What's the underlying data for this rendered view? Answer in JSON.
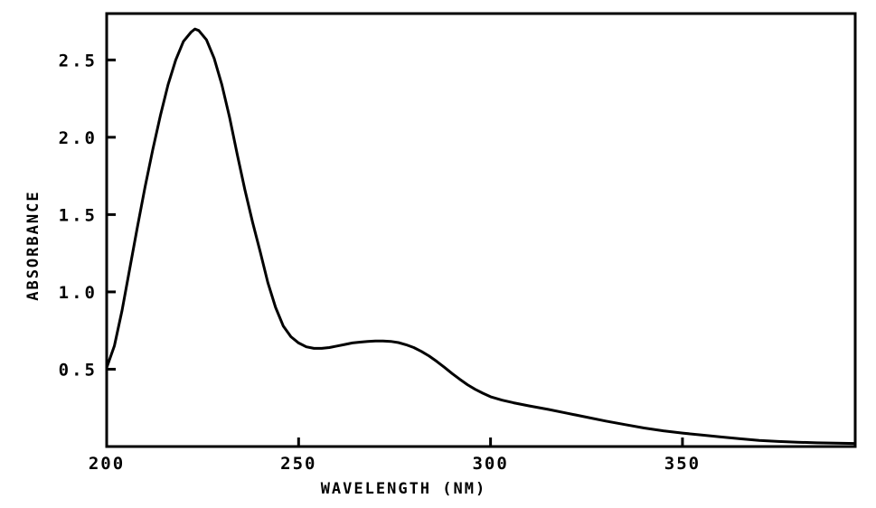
{
  "chart_data": {
    "type": "line",
    "title": "",
    "xlabel": "WAVELENGTH (NM)",
    "ylabel": "ABSORBANCE",
    "xlim": [
      200,
      395
    ],
    "ylim": [
      0.0,
      2.8
    ],
    "xticks": [
      {
        "value": 200,
        "label": "200"
      },
      {
        "value": 250,
        "label": "250"
      },
      {
        "value": 300,
        "label": "300"
      },
      {
        "value": 350,
        "label": "350"
      }
    ],
    "yticks": [
      {
        "value": 0.5,
        "label": "0.5"
      },
      {
        "value": 1.0,
        "label": "1.0"
      },
      {
        "value": 1.5,
        "label": "1.5"
      },
      {
        "value": 2.0,
        "label": "2.0"
      },
      {
        "value": 2.5,
        "label": "2.5"
      }
    ],
    "grid": false,
    "series": [
      {
        "color": "#000000",
        "points": [
          [
            200,
            0.51
          ],
          [
            202,
            0.65
          ],
          [
            204,
            0.88
          ],
          [
            206,
            1.15
          ],
          [
            208,
            1.42
          ],
          [
            210,
            1.68
          ],
          [
            212,
            1.92
          ],
          [
            214,
            2.14
          ],
          [
            216,
            2.34
          ],
          [
            218,
            2.5
          ],
          [
            220,
            2.62
          ],
          [
            222,
            2.68
          ],
          [
            223,
            2.7
          ],
          [
            224,
            2.69
          ],
          [
            226,
            2.63
          ],
          [
            228,
            2.51
          ],
          [
            230,
            2.34
          ],
          [
            232,
            2.13
          ],
          [
            234,
            1.89
          ],
          [
            236,
            1.66
          ],
          [
            238,
            1.45
          ],
          [
            240,
            1.26
          ],
          [
            242,
            1.06
          ],
          [
            244,
            0.9
          ],
          [
            246,
            0.78
          ],
          [
            248,
            0.71
          ],
          [
            250,
            0.67
          ],
          [
            252,
            0.645
          ],
          [
            254,
            0.635
          ],
          [
            256,
            0.635
          ],
          [
            258,
            0.64
          ],
          [
            260,
            0.65
          ],
          [
            262,
            0.66
          ],
          [
            264,
            0.67
          ],
          [
            266,
            0.675
          ],
          [
            268,
            0.68
          ],
          [
            270,
            0.683
          ],
          [
            272,
            0.683
          ],
          [
            274,
            0.68
          ],
          [
            276,
            0.672
          ],
          [
            278,
            0.658
          ],
          [
            280,
            0.64
          ],
          [
            282,
            0.615
          ],
          [
            284,
            0.585
          ],
          [
            286,
            0.55
          ],
          [
            288,
            0.512
          ],
          [
            290,
            0.472
          ],
          [
            292,
            0.435
          ],
          [
            294,
            0.4
          ],
          [
            296,
            0.37
          ],
          [
            298,
            0.345
          ],
          [
            300,
            0.322
          ],
          [
            303,
            0.3
          ],
          [
            306,
            0.283
          ],
          [
            310,
            0.263
          ],
          [
            315,
            0.24
          ],
          [
            320,
            0.215
          ],
          [
            325,
            0.19
          ],
          [
            330,
            0.165
          ],
          [
            335,
            0.142
          ],
          [
            340,
            0.12
          ],
          [
            345,
            0.102
          ],
          [
            350,
            0.087
          ],
          [
            355,
            0.074
          ],
          [
            360,
            0.062
          ],
          [
            365,
            0.05
          ],
          [
            370,
            0.04
          ],
          [
            375,
            0.033
          ],
          [
            380,
            0.028
          ],
          [
            385,
            0.024
          ],
          [
            390,
            0.022
          ],
          [
            395,
            0.02
          ]
        ]
      }
    ]
  }
}
